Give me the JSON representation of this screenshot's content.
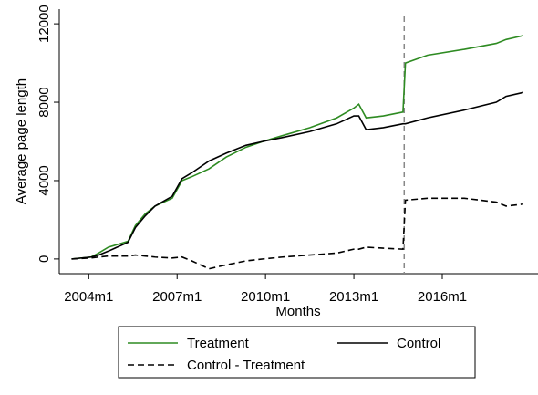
{
  "chart_data": {
    "type": "line",
    "y_label": "Average page length",
    "x_label": "Months",
    "x": [
      521,
      529,
      532,
      536,
      544,
      547,
      551,
      555,
      562,
      566,
      570,
      577,
      584,
      592,
      599,
      607,
      618,
      629,
      636,
      638,
      641,
      648,
      656,
      657,
      666,
      681,
      694,
      698,
      705
    ],
    "series": [
      {
        "name": "Treatment",
        "color": "#2e8b22",
        "line_style": "solid",
        "values": [
          0,
          100,
          300,
          600,
          900,
          1700,
          2300,
          2700,
          3100,
          4000,
          4200,
          4600,
          5200,
          5700,
          6000,
          6300,
          6700,
          7200,
          7700,
          7900,
          7200,
          7300,
          7500,
          10000,
          10400,
          10700,
          11000,
          11200,
          11400
        ]
      },
      {
        "name": "Control",
        "color": "#000000",
        "line_style": "solid",
        "values": [
          0,
          100,
          200,
          400,
          850,
          1600,
          2200,
          2700,
          3200,
          4100,
          4400,
          5000,
          5400,
          5800,
          6000,
          6200,
          6500,
          6900,
          7300,
          7300,
          6600,
          6700,
          6900,
          6900,
          7200,
          7600,
          8000,
          8300,
          8500
        ]
      },
      {
        "name": "Control - Treatment",
        "color": "#000000",
        "line_style": "dashed",
        "values": [
          0,
          50,
          100,
          150,
          150,
          200,
          150,
          100,
          50,
          100,
          -100,
          -500,
          -300,
          -100,
          0,
          100,
          200,
          300,
          500,
          500,
          600,
          550,
          500,
          3000,
          3100,
          3100,
          2900,
          2700,
          2800
        ]
      }
    ],
    "xlim": [
      516,
      711
    ],
    "ylim": [
      -750,
      12750
    ],
    "xticks": [
      {
        "value": 528,
        "label": "2004m1"
      },
      {
        "value": 564,
        "label": "2007m1"
      },
      {
        "value": 600,
        "label": "2010m1"
      },
      {
        "value": 636,
        "label": "2013m1"
      },
      {
        "value": 672,
        "label": "2016m1"
      }
    ],
    "yticks": [
      0,
      4000,
      8000,
      12000
    ],
    "xline": 656.5,
    "grid": false
  }
}
